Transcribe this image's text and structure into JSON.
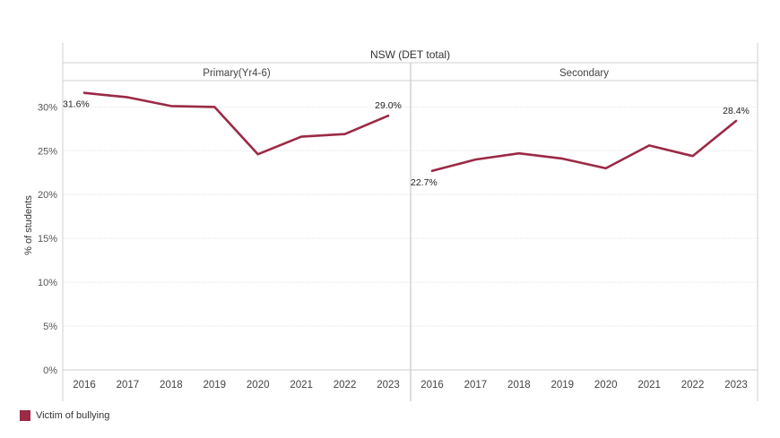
{
  "chart_data": {
    "type": "line",
    "super_header": "NSW (DET total)",
    "ylabel": "% of students",
    "ylim": [
      0,
      33
    ],
    "y_ticks": [
      0,
      5,
      10,
      15,
      20,
      25,
      30
    ],
    "y_tick_labels": [
      "0%",
      "5%",
      "10%",
      "15%",
      "20%",
      "25%",
      "30%"
    ],
    "grid": true,
    "series_color": "#9b2a45",
    "legend_position": "bottom-left",
    "panels": [
      {
        "header": "Primary(Yr4-6)",
        "categories": [
          "2016",
          "2017",
          "2018",
          "2019",
          "2020",
          "2021",
          "2022",
          "2023"
        ],
        "series": [
          {
            "name": "Victim of bullying",
            "values": [
              31.6,
              31.1,
              30.1,
              30.0,
              24.6,
              26.6,
              26.9,
              29.0
            ]
          }
        ],
        "annotations": [
          {
            "index": 0,
            "text": "31.6%"
          },
          {
            "index": 7,
            "text": "29.0%"
          }
        ]
      },
      {
        "header": "Secondary",
        "categories": [
          "2016",
          "2017",
          "2018",
          "2019",
          "2020",
          "2021",
          "2022",
          "2023"
        ],
        "series": [
          {
            "name": "Victim of bullying",
            "values": [
              22.7,
              24.0,
              24.7,
              24.1,
              23.0,
              25.6,
              24.4,
              28.4
            ]
          }
        ],
        "annotations": [
          {
            "index": 0,
            "text": "22.7%"
          },
          {
            "index": 7,
            "text": "28.4%"
          }
        ]
      }
    ]
  },
  "legend": {
    "label": "Victim of bullying",
    "color": "#9b2a45"
  }
}
